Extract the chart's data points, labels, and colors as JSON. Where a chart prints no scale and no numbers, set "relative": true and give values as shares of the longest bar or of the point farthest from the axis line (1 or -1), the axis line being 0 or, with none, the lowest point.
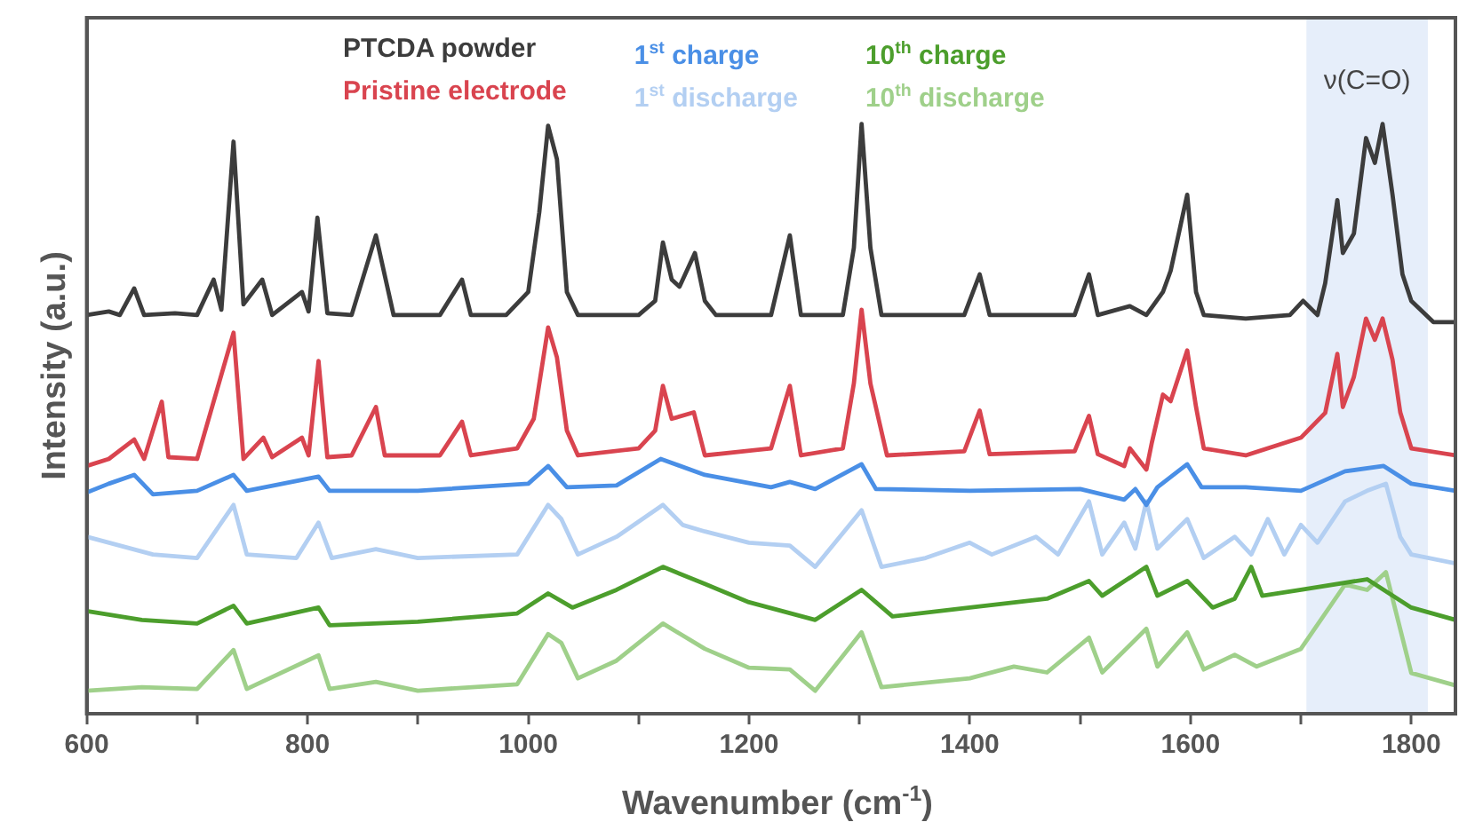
{
  "chart_data": {
    "type": "line",
    "relative": true,
    "xlabel": "Wavenumber (cm$^{-1}$)",
    "ylabel": "Intensity (a.u.)",
    "xlim": [
      600,
      1840
    ],
    "xticks": [
      600,
      {
        "value": 700,
        "label": null
      },
      800,
      {
        "value": 900,
        "label": null
      },
      1000,
      {
        "value": 1100,
        "label": null
      },
      1200,
      {
        "value": 1300,
        "label": null
      },
      1400,
      {
        "value": 1500,
        "label": null
      },
      1600,
      {
        "value": 1700,
        "label": null
      },
      1800
    ],
    "legend": "top",
    "grid": false,
    "marker": "none",
    "line_style": "solid",
    "bands": [
      {
        "axis": "x",
        "from": 1705,
        "to": 1815,
        "label": "ν(C=O)",
        "color": "#e6eefa"
      }
    ],
    "series": [
      {
        "name": "PTCDA powder",
        "color": "#3c3c3c",
        "x": [
          600,
          620,
          630,
          643,
          652,
          680,
          700,
          715,
          722,
          733,
          742,
          759,
          768,
          795,
          801,
          809,
          818,
          840,
          862,
          868,
          878,
          920,
          940,
          948,
          980,
          1000,
          1010,
          1018,
          1026,
          1035,
          1045,
          1100,
          1115,
          1122,
          1130,
          1137,
          1151,
          1160,
          1170,
          1220,
          1237,
          1247,
          1285,
          1295,
          1302,
          1310,
          1320,
          1395,
          1409,
          1418,
          1495,
          1508,
          1516,
          1545,
          1560,
          1575,
          1582,
          1597,
          1605,
          1612,
          1650,
          1690,
          1702,
          1715,
          1722,
          1733,
          1738,
          1748,
          1759,
          1767,
          1774,
          1783,
          1792,
          1800,
          1820,
          1840
        ],
        "values": [
          0.676,
          0.682,
          0.676,
          0.721,
          0.676,
          0.679,
          0.676,
          0.736,
          0.685,
          0.97,
          0.694,
          0.736,
          0.676,
          0.715,
          0.682,
          0.841,
          0.679,
          0.676,
          0.811,
          0.76,
          0.676,
          0.676,
          0.736,
          0.676,
          0.676,
          0.715,
          0.85,
          0.997,
          0.94,
          0.715,
          0.676,
          0.676,
          0.7,
          0.799,
          0.736,
          0.724,
          0.781,
          0.7,
          0.676,
          0.676,
          0.811,
          0.676,
          0.676,
          0.79,
          1.0,
          0.79,
          0.676,
          0.676,
          0.745,
          0.676,
          0.676,
          0.745,
          0.676,
          0.691,
          0.676,
          0.715,
          0.751,
          0.88,
          0.715,
          0.676,
          0.67,
          0.676,
          0.7,
          0.676,
          0.73,
          0.871,
          0.781,
          0.814,
          0.976,
          0.934,
          1.0,
          0.88,
          0.745,
          0.7,
          0.664,
          0.664
        ]
      },
      {
        "name": "Pristine electrode",
        "color": "#d9444f",
        "x": [
          600,
          620,
          643,
          652,
          668,
          674,
          700,
          733,
          742,
          760,
          768,
          795,
          801,
          810,
          818,
          840,
          862,
          870,
          920,
          940,
          948,
          990,
          1005,
          1018,
          1026,
          1035,
          1045,
          1100,
          1115,
          1122,
          1130,
          1150,
          1160,
          1220,
          1237,
          1247,
          1285,
          1295,
          1302,
          1310,
          1325,
          1395,
          1409,
          1418,
          1495,
          1508,
          1516,
          1540,
          1545,
          1560,
          1565,
          1575,
          1582,
          1597,
          1605,
          1612,
          1650,
          1700,
          1722,
          1733,
          1738,
          1748,
          1759,
          1767,
          1774,
          1783,
          1790,
          1800,
          1840
        ],
        "values": [
          0.42,
          0.432,
          0.465,
          0.432,
          0.529,
          0.435,
          0.432,
          0.646,
          0.432,
          0.468,
          0.435,
          0.468,
          0.438,
          0.598,
          0.435,
          0.438,
          0.52,
          0.438,
          0.438,
          0.495,
          0.438,
          0.45,
          0.5,
          0.655,
          0.604,
          0.48,
          0.438,
          0.45,
          0.48,
          0.556,
          0.5,
          0.511,
          0.438,
          0.45,
          0.556,
          0.438,
          0.45,
          0.56,
          0.685,
          0.56,
          0.438,
          0.445,
          0.514,
          0.44,
          0.445,
          0.505,
          0.44,
          0.42,
          0.45,
          0.414,
          0.46,
          0.541,
          0.53,
          0.616,
          0.52,
          0.45,
          0.438,
          0.468,
          0.51,
          0.61,
          0.52,
          0.571,
          0.67,
          0.634,
          0.67,
          0.6,
          0.511,
          0.45,
          0.438
        ]
      },
      {
        "name": "1$^{st}$ charge",
        "color": "#4a8fe6",
        "x": [
          600,
          620,
          643,
          660,
          700,
          733,
          745,
          810,
          820,
          900,
          1000,
          1018,
          1035,
          1080,
          1120,
          1160,
          1220,
          1237,
          1260,
          1302,
          1315,
          1400,
          1500,
          1540,
          1550,
          1560,
          1570,
          1597,
          1610,
          1650,
          1700,
          1740,
          1775,
          1800,
          1840
        ],
        "values": [
          0.375,
          0.39,
          0.405,
          0.372,
          0.378,
          0.405,
          0.378,
          0.402,
          0.378,
          0.378,
          0.39,
          0.42,
          0.384,
          0.387,
          0.432,
          0.405,
          0.384,
          0.393,
          0.381,
          0.423,
          0.381,
          0.378,
          0.381,
          0.363,
          0.381,
          0.354,
          0.384,
          0.423,
          0.384,
          0.384,
          0.378,
          0.411,
          0.42,
          0.39,
          0.378
        ]
      },
      {
        "name": "1$^{st}$ discharge",
        "color": "#b3cff2",
        "x": [
          600,
          630,
          660,
          700,
          733,
          745,
          790,
          810,
          822,
          862,
          900,
          990,
          1018,
          1030,
          1045,
          1080,
          1122,
          1140,
          1160,
          1200,
          1237,
          1260,
          1302,
          1320,
          1360,
          1400,
          1420,
          1460,
          1480,
          1508,
          1520,
          1540,
          1550,
          1560,
          1570,
          1597,
          1612,
          1640,
          1655,
          1670,
          1685,
          1700,
          1715,
          1740,
          1760,
          1777,
          1790,
          1800,
          1840
        ],
        "values": [
          0.3,
          0.285,
          0.27,
          0.264,
          0.354,
          0.27,
          0.264,
          0.324,
          0.264,
          0.279,
          0.264,
          0.27,
          0.354,
          0.33,
          0.27,
          0.3,
          0.354,
          0.32,
          0.309,
          0.29,
          0.285,
          0.249,
          0.345,
          0.249,
          0.264,
          0.29,
          0.27,
          0.3,
          0.27,
          0.36,
          0.27,
          0.324,
          0.28,
          0.36,
          0.28,
          0.33,
          0.264,
          0.3,
          0.27,
          0.33,
          0.27,
          0.32,
          0.29,
          0.36,
          0.378,
          0.39,
          0.3,
          0.27,
          0.255
        ]
      },
      {
        "name": "10$^{th}$ charge",
        "color": "#4c9e2c",
        "x": [
          600,
          650,
          700,
          733,
          745,
          810,
          820,
          900,
          990,
          1018,
          1040,
          1080,
          1122,
          1160,
          1200,
          1260,
          1302,
          1330,
          1400,
          1470,
          1508,
          1520,
          1560,
          1570,
          1597,
          1620,
          1640,
          1655,
          1665,
          1700,
          1760,
          1800,
          1840
        ],
        "values": [
          0.174,
          0.159,
          0.153,
          0.183,
          0.153,
          0.18,
          0.15,
          0.156,
          0.17,
          0.204,
          0.18,
          0.21,
          0.249,
          0.22,
          0.189,
          0.159,
          0.21,
          0.165,
          0.18,
          0.195,
          0.225,
          0.2,
          0.249,
          0.2,
          0.225,
          0.18,
          0.195,
          0.249,
          0.2,
          0.21,
          0.228,
          0.18,
          0.159
        ]
      },
      {
        "name": "10$^{th}$ discharge",
        "color": "#9fd08a",
        "x": [
          600,
          650,
          700,
          733,
          745,
          810,
          820,
          862,
          900,
          990,
          1018,
          1030,
          1045,
          1080,
          1122,
          1160,
          1200,
          1237,
          1260,
          1302,
          1320,
          1400,
          1440,
          1470,
          1508,
          1520,
          1560,
          1570,
          1597,
          1612,
          1640,
          1660,
          1700,
          1740,
          1760,
          1777,
          1800,
          1840
        ],
        "values": [
          0.039,
          0.045,
          0.042,
          0.108,
          0.042,
          0.099,
          0.042,
          0.054,
          0.039,
          0.05,
          0.135,
          0.12,
          0.06,
          0.09,
          0.153,
          0.11,
          0.078,
          0.075,
          0.039,
          0.138,
          0.045,
          0.06,
          0.08,
          0.07,
          0.129,
          0.07,
          0.144,
          0.08,
          0.138,
          0.075,
          0.1,
          0.08,
          0.11,
          0.219,
          0.21,
          0.24,
          0.069,
          0.048
        ]
      }
    ]
  }
}
